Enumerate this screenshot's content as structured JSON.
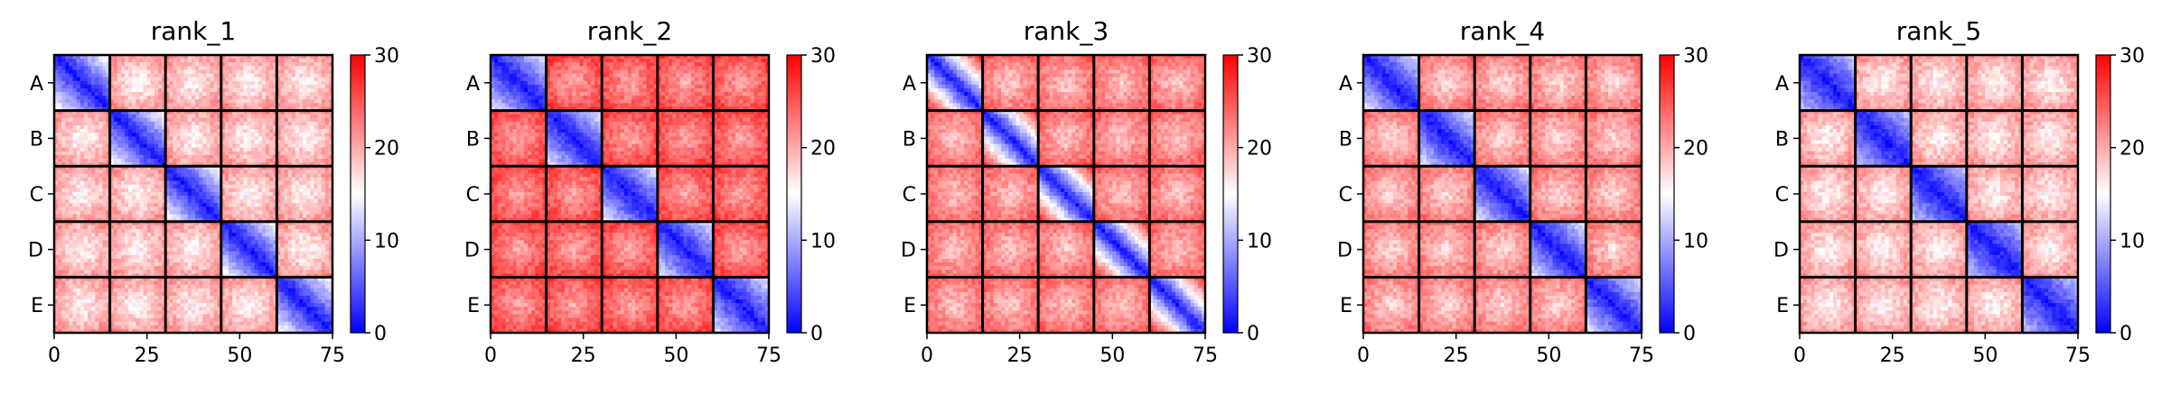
{
  "chart_data": [
    {
      "type": "heatmap",
      "title": "rank_1",
      "row_labels": [
        "A",
        "B",
        "C",
        "D",
        "E"
      ],
      "xticks": [
        0,
        25,
        50,
        75
      ],
      "xlim": [
        0,
        75
      ],
      "block_size": 15,
      "colorbar": {
        "ticks": [
          0,
          10,
          20,
          30
        ],
        "range": [
          0,
          30
        ],
        "colors": [
          "#0000ff",
          "#ffffff",
          "#ff0000"
        ]
      },
      "within_block_max": 14,
      "between_block_mean": 20
    },
    {
      "type": "heatmap",
      "title": "rank_2",
      "row_labels": [
        "A",
        "B",
        "C",
        "D",
        "E"
      ],
      "xticks": [
        0,
        25,
        50,
        75
      ],
      "xlim": [
        0,
        75
      ],
      "block_size": 15,
      "colorbar": {
        "ticks": [
          0,
          10,
          20,
          30
        ],
        "range": [
          0,
          30
        ],
        "colors": [
          "#0000ff",
          "#ffffff",
          "#ff0000"
        ]
      },
      "within_block_max": 12,
      "between_block_mean": 25
    },
    {
      "type": "heatmap",
      "title": "rank_3",
      "row_labels": [
        "A",
        "B",
        "C",
        "D",
        "E"
      ],
      "xticks": [
        0,
        25,
        50,
        75
      ],
      "xlim": [
        0,
        75
      ],
      "block_size": 15,
      "colorbar": {
        "ticks": [
          0,
          10,
          20,
          30
        ],
        "range": [
          0,
          30
        ],
        "colors": [
          "#0000ff",
          "#ffffff",
          "#ff0000"
        ]
      },
      "within_block_max": 26,
      "between_block_mean": 23
    },
    {
      "type": "heatmap",
      "title": "rank_4",
      "row_labels": [
        "A",
        "B",
        "C",
        "D",
        "E"
      ],
      "xticks": [
        0,
        25,
        50,
        75
      ],
      "xlim": [
        0,
        75
      ],
      "block_size": 15,
      "colorbar": {
        "ticks": [
          0,
          10,
          20,
          30
        ],
        "range": [
          0,
          30
        ],
        "colors": [
          "#0000ff",
          "#ffffff",
          "#ff0000"
        ]
      },
      "within_block_max": 12,
      "between_block_mean": 22
    },
    {
      "type": "heatmap",
      "title": "rank_5",
      "row_labels": [
        "A",
        "B",
        "C",
        "D",
        "E"
      ],
      "xticks": [
        0,
        25,
        50,
        75
      ],
      "xlim": [
        0,
        75
      ],
      "block_size": 15,
      "colorbar": {
        "ticks": [
          0,
          10,
          20,
          30
        ],
        "range": [
          0,
          30
        ],
        "colors": [
          "#0000ff",
          "#ffffff",
          "#ff0000"
        ]
      },
      "within_block_max": 10,
      "between_block_mean": 20
    }
  ]
}
